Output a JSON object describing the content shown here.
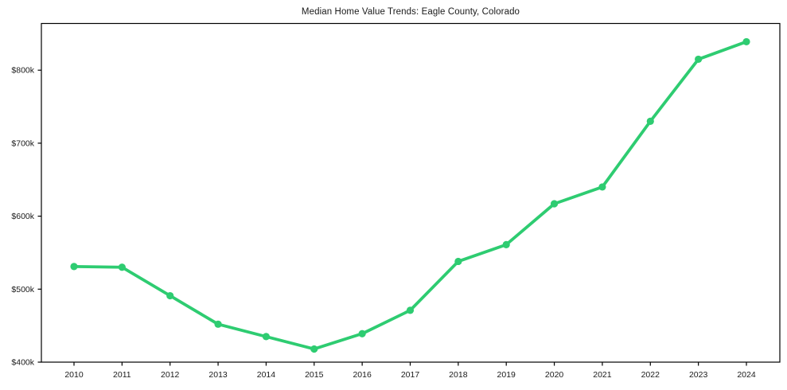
{
  "page": {
    "background_color": "#ffffff",
    "text_color": "#1a1a1a"
  },
  "chart_data": {
    "type": "line",
    "title": "Median Home Value Trends: Eagle County, Colorado",
    "x": [
      2010,
      2011,
      2012,
      2013,
      2014,
      2015,
      2016,
      2017,
      2018,
      2019,
      2020,
      2021,
      2022,
      2023,
      2024
    ],
    "series": [
      {
        "name": "median-home-value",
        "unit": "thousand USD",
        "values": [
          531,
          530,
          491,
          452,
          435,
          418,
          439,
          471,
          538,
          561,
          617,
          640,
          730,
          815,
          839
        ],
        "color": "#2ecc71"
      }
    ],
    "xlabel": "",
    "ylabel": "",
    "ylim": [
      400,
      864
    ],
    "y_ticks": [
      {
        "value": 400,
        "label": "$400k"
      },
      {
        "value": 500,
        "label": "$500k"
      },
      {
        "value": 600,
        "label": "$600k"
      },
      {
        "value": 700,
        "label": "$700k"
      },
      {
        "value": 800,
        "label": "$800k"
      }
    ],
    "grid": false,
    "legend_position": "none",
    "frame": true,
    "frame_color": "#000000",
    "marker": "circle"
  }
}
